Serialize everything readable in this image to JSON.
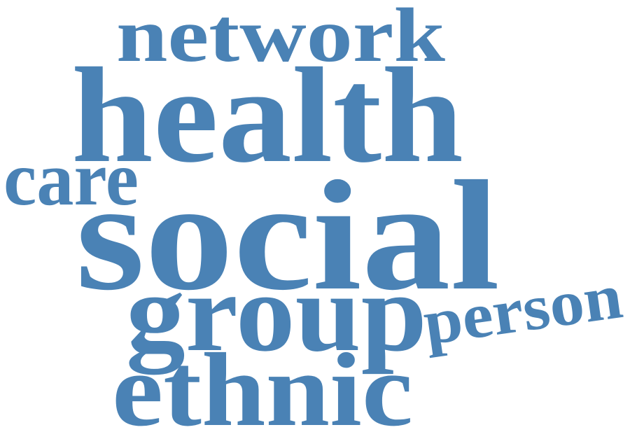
{
  "word_cloud": {
    "color": "#4a82b5",
    "words": [
      {
        "text": "network"
      },
      {
        "text": "health"
      },
      {
        "text": "care"
      },
      {
        "text": "social"
      },
      {
        "text": "group"
      },
      {
        "text": "person"
      },
      {
        "text": "ethnic"
      }
    ]
  }
}
